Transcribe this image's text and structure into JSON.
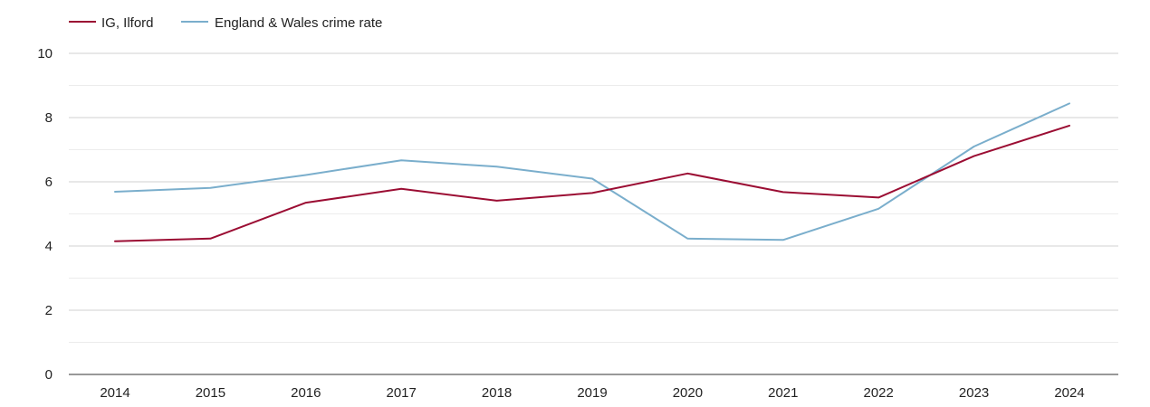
{
  "chart_data": {
    "type": "line",
    "title": "",
    "xlabel": "",
    "ylabel": "",
    "categories": [
      "2014",
      "2015",
      "2016",
      "2017",
      "2018",
      "2019",
      "2020",
      "2021",
      "2022",
      "2023",
      "2024"
    ],
    "ylim": [
      0,
      10
    ],
    "yticks": [
      "0",
      "2",
      "4",
      "6",
      "8",
      "10"
    ],
    "grid": true,
    "legend_position": "top-left",
    "series": [
      {
        "name": "IG, Ilford",
        "color": "#9b0d33",
        "values": [
          4.15,
          4.23,
          5.35,
          5.78,
          5.41,
          5.65,
          6.26,
          5.68,
          5.51,
          6.8,
          7.75
        ]
      },
      {
        "name": "England & Wales crime rate",
        "color": "#7aaecc",
        "values": [
          5.69,
          5.81,
          6.21,
          6.67,
          6.47,
          6.1,
          4.23,
          4.19,
          5.16,
          7.1,
          8.44
        ]
      }
    ]
  }
}
